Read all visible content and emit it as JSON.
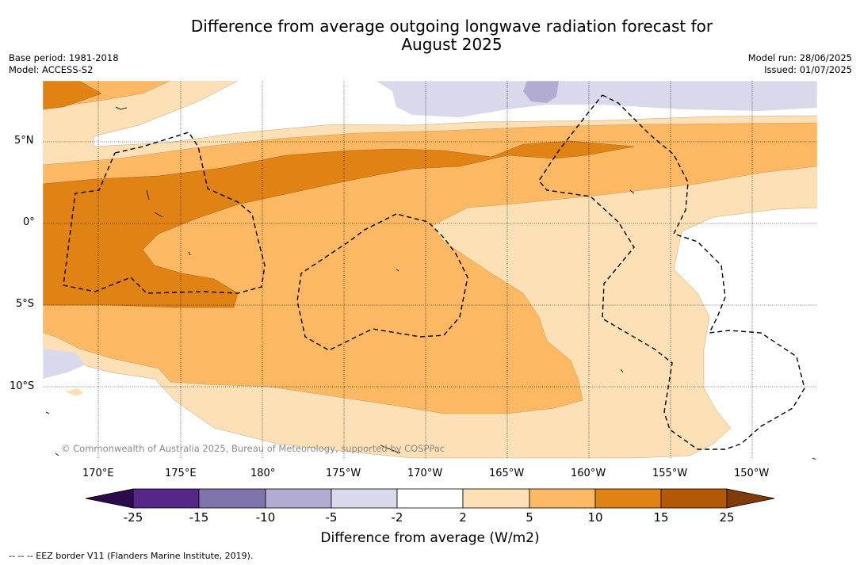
{
  "title_line1": "Difference from average outgoing longwave radiation forecast for",
  "title_line2": "August 2025",
  "base_period": "Base period: 1981-2018",
  "model": "Model: ACCESS-S2",
  "model_run": "Model run: 28/06/2025",
  "issued": "Issued: 01/07/2025",
  "lat_labels": [
    "5°N",
    "0°",
    "5°S",
    "10°S"
  ],
  "lon_labels": [
    "170°E",
    "175°E",
    "180°",
    "175°W",
    "170°W",
    "165°W",
    "160°W",
    "155°W",
    "150°W"
  ],
  "copyright": "© Commonwealth of Australia 2025, Bureau of Meteorology, supported by COSPPac",
  "colorbar": {
    "ticks": [
      "-25",
      "-15",
      "-10",
      "-5",
      "-2",
      "2",
      "5",
      "10",
      "15",
      "25"
    ],
    "colors": [
      "#2d0a4e",
      "#542788",
      "#8073ac",
      "#b2abd2",
      "#d8daeb",
      "#ffffff",
      "#fee0b6",
      "#fdb863",
      "#e08214",
      "#b35806",
      "#7f3b08"
    ],
    "label": "Difference from average (W/m2)"
  },
  "footer": "--  --  -- EEZ border V11 (Flanders Marine Institute, 2019)."
}
